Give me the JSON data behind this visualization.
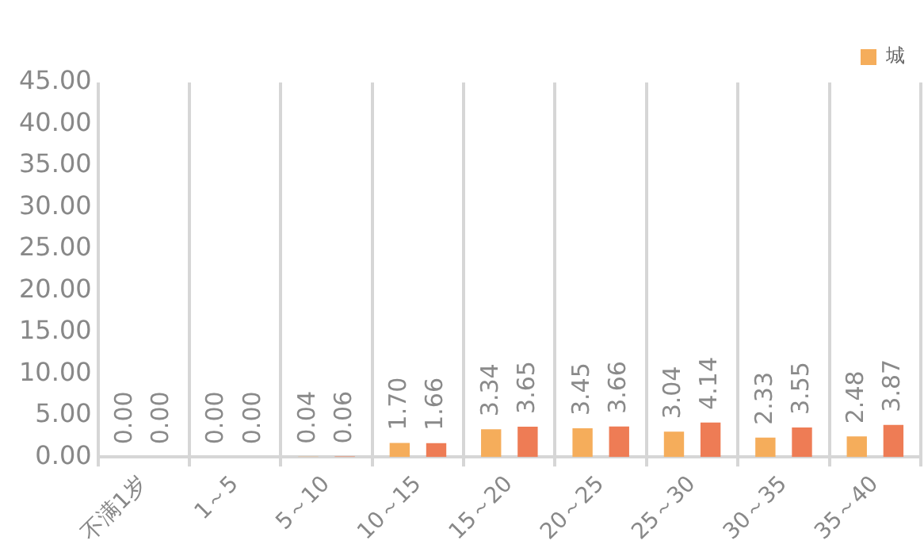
{
  "chart_data": {
    "type": "bar",
    "categories": [
      "不满1岁",
      "1～5",
      "5～10",
      "10～15",
      "15～20",
      "20～25",
      "25～30",
      "30～35",
      "35～40"
    ],
    "series": [
      {
        "name": "城",
        "color": "#f5ad5b",
        "values": [
          0,
          0,
          0.04,
          1.7,
          3.34,
          3.45,
          3.04,
          2.33,
          2.48
        ],
        "value_labels": [
          "0.00",
          "0.00",
          "0.04",
          "1.70",
          "3.34",
          "3.45",
          "3.04",
          "2.33",
          "2.48"
        ]
      },
      {
        "color": "#ee7c55",
        "values": [
          0,
          0,
          0.06,
          1.66,
          3.65,
          3.66,
          4.14,
          3.55,
          3.87
        ],
        "value_labels": [
          "0.00",
          "0.00",
          "0.06",
          "1.66",
          "3.65",
          "3.66",
          "4.14",
          "3.55",
          "3.87"
        ]
      }
    ],
    "ylim": [
      0,
      45
    ],
    "yticks": [
      {
        "value": 0,
        "label": "0.00"
      },
      {
        "value": 5,
        "label": "5.00"
      },
      {
        "value": 10,
        "label": "10.00"
      },
      {
        "value": 15,
        "label": "15.00"
      },
      {
        "value": 20,
        "label": "20.00"
      },
      {
        "value": 25,
        "label": "25.00"
      },
      {
        "value": 30,
        "label": "30.00"
      },
      {
        "value": 35,
        "label": "35.00"
      },
      {
        "value": 40,
        "label": "40.00"
      },
      {
        "value": 45,
        "label": "45.00"
      }
    ],
    "grid": "x",
    "legend": "top right"
  }
}
